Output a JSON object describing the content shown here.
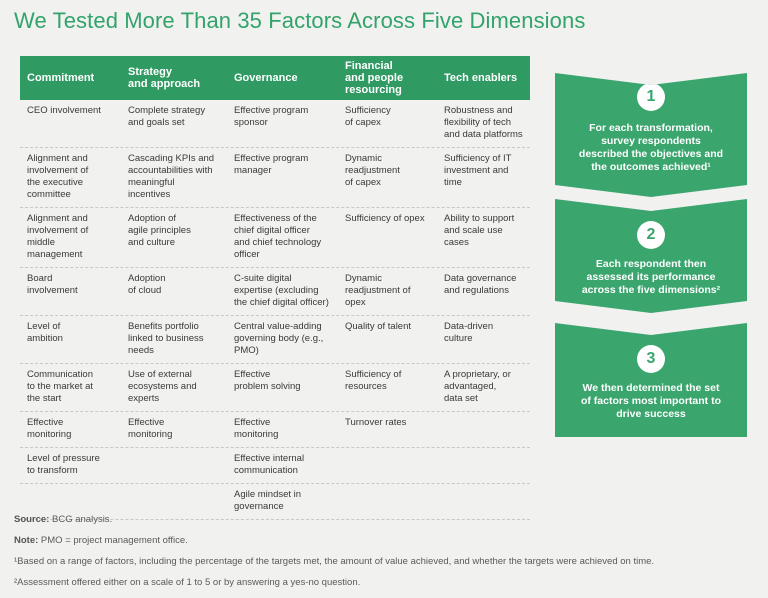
{
  "title": "We Tested More Than 35 Factors Across Five Dimensions",
  "table": {
    "headers": [
      "Commitment",
      "Strategy\nand approach",
      "Governance",
      "Financial\nand people\nresourcing",
      "Tech enablers"
    ],
    "rows": [
      [
        "CEO involvement",
        "Complete strategy\nand goals set",
        "Effective program\nsponsor",
        "Sufficiency\nof capex",
        "Robustness and\nflexibility of tech\nand data platforms"
      ],
      [
        "Alignment and\ninvolvement of\nthe executive\ncommittee",
        "Cascading KPIs and\naccountabilities with\nmeaningful\nincentives",
        "Effective program\nmanager",
        "Dynamic\nreadjustment\nof capex",
        "Sufficiency of IT\ninvestment and\ntime"
      ],
      [
        "Alignment and\ninvolvement of\nmiddle\nmanagement",
        "Adoption of\nagile principles\nand culture",
        "Effectiveness of the\nchief digital officer\nand chief technology\nofficer",
        "Sufficiency of opex",
        "Ability to support\nand scale use\ncases"
      ],
      [
        "Board\ninvolvement",
        "Adoption\nof cloud",
        "C-suite digital\nexpertise (excluding\nthe chief digital officer)",
        "Dynamic\nreadjustment of\nopex",
        "Data governance\nand regulations"
      ],
      [
        "Level of\nambition",
        "Benefits portfolio\nlinked to business\nneeds",
        "Central value-adding\ngoverning body (e.g.,\nPMO)",
        "Quality of talent",
        "Data-driven\nculture"
      ],
      [
        "Communication\nto the market at\nthe start",
        "Use of external\necosystems and\nexperts",
        "Effective\nproblem solving",
        "Sufficiency of\nresources",
        "A proprietary, or\nadvantaged,\ndata set"
      ],
      [
        "Effective\nmonitoring",
        "Effective\nmonitoring",
        "Effective\nmonitoring",
        "Turnover rates",
        ""
      ],
      [
        "Level of pressure\nto transform",
        "",
        "Effective internal\ncommunication",
        "",
        ""
      ],
      [
        "",
        "",
        "Agile mindset in\ngovernance",
        "",
        ""
      ]
    ]
  },
  "steps": [
    {
      "number": "1",
      "text": "For each transformation,\nsurvey respondents\ndescribed the objectives and\nthe outcomes achieved¹"
    },
    {
      "number": "2",
      "text": "Each respondent then\nassessed its performance\nacross the five dimensions²"
    },
    {
      "number": "3",
      "text": "We then determined the set\nof factors most important to\ndrive success"
    }
  ],
  "notes": {
    "source_label": "Source:",
    "source_text": " BCG analysis.",
    "note_label": "Note:",
    "note_text": " PMO = project management office.",
    "footnote1": "¹Based on a range of factors, including the percentage of the targets met, the amount of value achieved, and whether the targets were achieved on time.",
    "footnote2": "²Assessment offered either on a scale of 1 to 5 or by answering a yes-no question."
  },
  "colors": {
    "accent": "#2f9a62",
    "step": "#3aa56d",
    "background": "#f1f1ef"
  }
}
